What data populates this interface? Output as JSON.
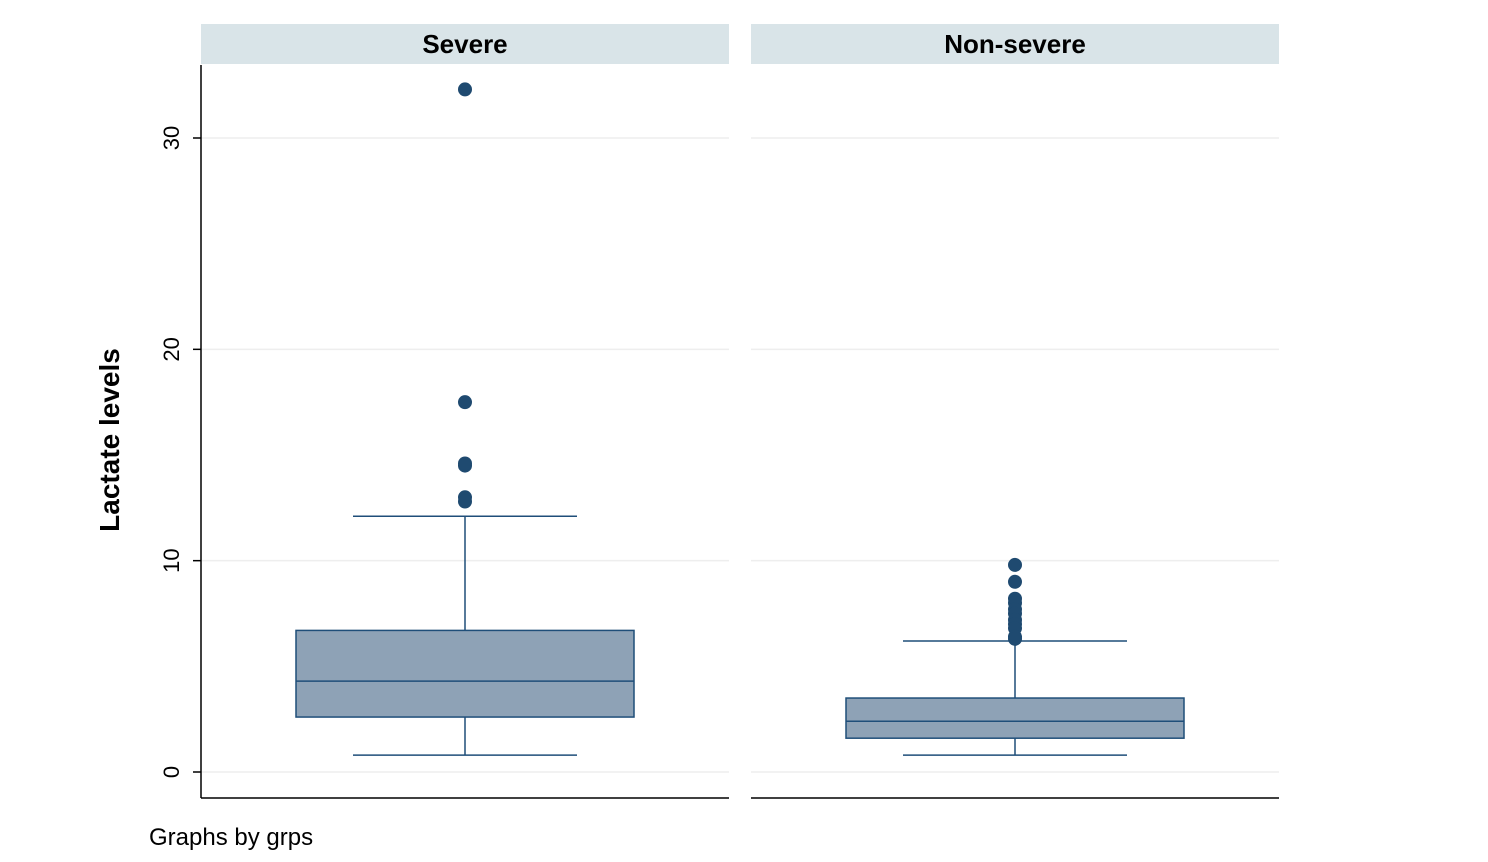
{
  "chart_data": {
    "type": "box",
    "ylabel": "Lactate  levels",
    "note": "Graphs by grps",
    "ylim": [
      -1.2,
      33.5
    ],
    "yticks": [
      0,
      10,
      20,
      30
    ],
    "grid": true,
    "colors": {
      "box_fill": "#8ea2b6",
      "box_stroke": "#1f4e79",
      "outlier": "#1f4a70",
      "header_bg": "#d9e4e8",
      "gridline": "#eeeeee"
    },
    "panels": [
      {
        "title": "Severe",
        "box": {
          "whisker_low": 0.8,
          "q1": 2.6,
          "median": 4.3,
          "q3": 6.7,
          "whisker_high": 12.1
        },
        "outliers": [
          32.3,
          17.5,
          14.5,
          14.6,
          13.0,
          12.8
        ]
      },
      {
        "title": "Non-severe",
        "box": {
          "whisker_low": 0.8,
          "q1": 1.6,
          "median": 2.4,
          "q3": 3.5,
          "whisker_high": 6.2
        },
        "outliers": [
          9.8,
          9.0,
          8.2,
          8.0,
          7.7,
          7.5,
          7.2,
          7.0,
          6.8,
          6.4,
          6.3
        ]
      }
    ]
  }
}
